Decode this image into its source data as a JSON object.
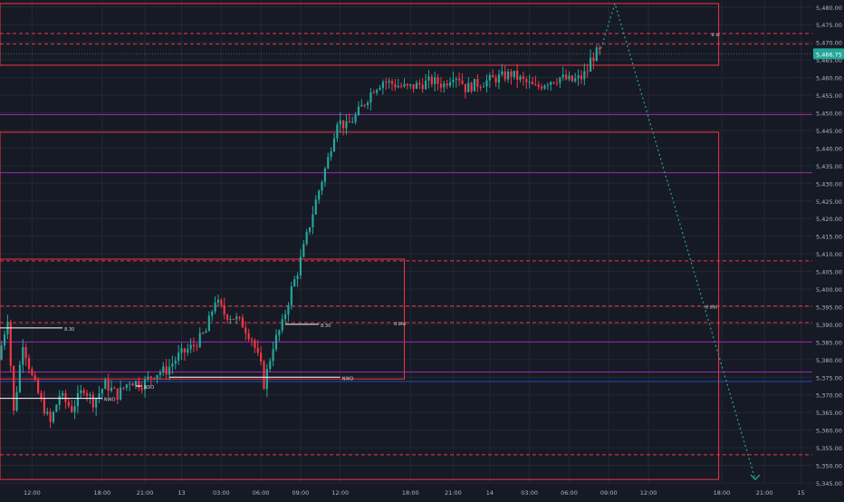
{
  "chart_data": {
    "type": "candlestick",
    "price_axis": {
      "min": 5345,
      "max": 5482,
      "ticks": [
        "5,345.00",
        "5,350.00",
        "5,355.00",
        "5,360.00",
        "5,365.00",
        "5,370.00",
        "5,375.00",
        "5,380.00",
        "5,385.00",
        "5,390.00",
        "5,395.00",
        "5,400.00",
        "5,405.00",
        "5,410.00",
        "5,415.00",
        "5,420.00",
        "5,425.00",
        "5,430.00",
        "5,435.00",
        "5,440.00",
        "5,445.00",
        "5,450.00",
        "5,455.00",
        "5,460.00",
        "5,465.00",
        "5,470.00",
        "5,475.00",
        "5,480.00"
      ],
      "tick_values": [
        5345,
        5350,
        5355,
        5360,
        5365,
        5370,
        5375,
        5380,
        5385,
        5390,
        5395,
        5400,
        5405,
        5410,
        5415,
        5420,
        5425,
        5430,
        5435,
        5440,
        5445,
        5450,
        5455,
        5460,
        5465,
        5470,
        5475,
        5480
      ],
      "last_price_label": "5,466.75",
      "last_price": 5466.75
    },
    "time_axis": {
      "labels": [
        "12:00",
        "18:00",
        "21:00",
        "13",
        "03:00",
        "06:00",
        "09:00",
        "12:00",
        "18:00",
        "21:00",
        "14",
        "03:00",
        "06:00",
        "09:00",
        "12:00",
        "18:00",
        "21:00",
        "15"
      ],
      "label_bars": [
        10,
        33,
        47,
        59,
        72,
        85,
        98,
        111,
        134,
        148,
        160,
        173,
        186,
        199,
        212,
        236,
        250,
        262
      ],
      "total_bars": 265
    },
    "candles": {
      "count": 197,
      "anchors": [
        [
          0,
          5380
        ],
        [
          3,
          5392
        ],
        [
          5,
          5365
        ],
        [
          8,
          5385
        ],
        [
          11,
          5375
        ],
        [
          14,
          5368
        ],
        [
          17,
          5362
        ],
        [
          20,
          5370
        ],
        [
          24,
          5366
        ],
        [
          28,
          5372
        ],
        [
          31,
          5368
        ],
        [
          35,
          5373
        ],
        [
          39,
          5370
        ],
        [
          43,
          5374
        ],
        [
          47,
          5373
        ],
        [
          51,
          5376
        ],
        [
          55,
          5377
        ],
        [
          59,
          5381
        ],
        [
          64,
          5384
        ],
        [
          68,
          5388
        ],
        [
          71,
          5397
        ],
        [
          74,
          5393
        ],
        [
          77,
          5392
        ],
        [
          80,
          5390
        ],
        [
          83,
          5386
        ],
        [
          86,
          5378
        ],
        [
          87,
          5373
        ],
        [
          90,
          5384
        ],
        [
          93,
          5390
        ],
        [
          96,
          5400
        ],
        [
          98,
          5405
        ],
        [
          101,
          5415
        ],
        [
          104,
          5425
        ],
        [
          108,
          5437
        ],
        [
          111,
          5448
        ],
        [
          114,
          5446
        ],
        [
          117,
          5449
        ],
        [
          120,
          5453
        ],
        [
          123,
          5457
        ],
        [
          126,
          5459
        ],
        [
          130,
          5458
        ],
        [
          134,
          5457
        ],
        [
          138,
          5458
        ],
        [
          142,
          5459
        ],
        [
          146,
          5458
        ],
        [
          149,
          5461
        ],
        [
          151,
          5460
        ],
        [
          153,
          5457
        ],
        [
          156,
          5458
        ],
        [
          160,
          5459
        ],
        [
          164,
          5460
        ],
        [
          168,
          5461
        ],
        [
          172,
          5459
        ],
        [
          176,
          5457
        ],
        [
          180,
          5459
        ],
        [
          184,
          5460
        ],
        [
          188,
          5459
        ],
        [
          191,
          5460
        ],
        [
          193,
          5462
        ],
        [
          194,
          5465
        ],
        [
          196,
          5467
        ]
      ]
    },
    "zones": [
      {
        "top": 5481,
        "bottom": 5463.5,
        "left_bar": 0,
        "right_bar": 235,
        "color": "#f23645"
      },
      {
        "top": 5444.5,
        "bottom": 5346,
        "left_bar": 0,
        "right_bar": 235,
        "color": "#f23645"
      },
      {
        "top": 5408.5,
        "bottom": 5374.5,
        "left_bar": 0,
        "right_bar": 132,
        "color": "#f23645"
      }
    ],
    "dashed_levels": [
      5472.5,
      5469.5,
      5408,
      5395.2,
      5390.5,
      5353
    ],
    "purple_levels": [
      5449.5,
      5433,
      5385,
      5376.5
    ],
    "blue_level": 5373.8,
    "labels": [
      {
        "text": "d vi",
        "bar": 232,
        "price": 5472.5
      },
      {
        "text": "d sibi",
        "bar": 230,
        "price": 5395.2
      },
      {
        "text": "d bisi",
        "bar": 128,
        "price": 5390.5
      },
      {
        "text": "8.30",
        "bar": 20,
        "price": 5389
      },
      {
        "text": "8.30",
        "bar": 104,
        "price": 5390
      },
      {
        "text": "NWO",
        "bar": 33,
        "price": 5369
      },
      {
        "text": "NWO",
        "bar": 111,
        "price": 5375
      },
      {
        "text": "NDO",
        "bar": 46,
        "price": 5372.5
      }
    ],
    "segments": [
      {
        "from_bar": 0,
        "to_bar": 20,
        "price": 5389,
        "color": "#ffffff"
      },
      {
        "from_bar": 93,
        "to_bar": 104,
        "price": 5390,
        "color": "#ffffff"
      },
      {
        "from_bar": 0,
        "to_bar": 33,
        "price": 5369,
        "color": "#ffffff"
      },
      {
        "from_bar": 55,
        "to_bar": 111,
        "price": 5375,
        "color": "#ffffff"
      },
      {
        "from_bar": 44,
        "to_bar": 46,
        "price": 5372.5,
        "color": "#ffffff"
      }
    ],
    "projection": [
      {
        "bar": 196,
        "price": 5467
      },
      {
        "bar": 201,
        "price": 5481
      },
      {
        "bar": 247,
        "price": 5346
      }
    ],
    "colors": {
      "up": "#26a69a",
      "down": "#f23645",
      "zone": "#f23645",
      "purple": "#9c27b0",
      "blue": "#2962ff",
      "projection": "#26a69a",
      "last_price_bg": "#26a69a",
      "axis_text": "#b2b5be",
      "grid": "#232834"
    }
  }
}
